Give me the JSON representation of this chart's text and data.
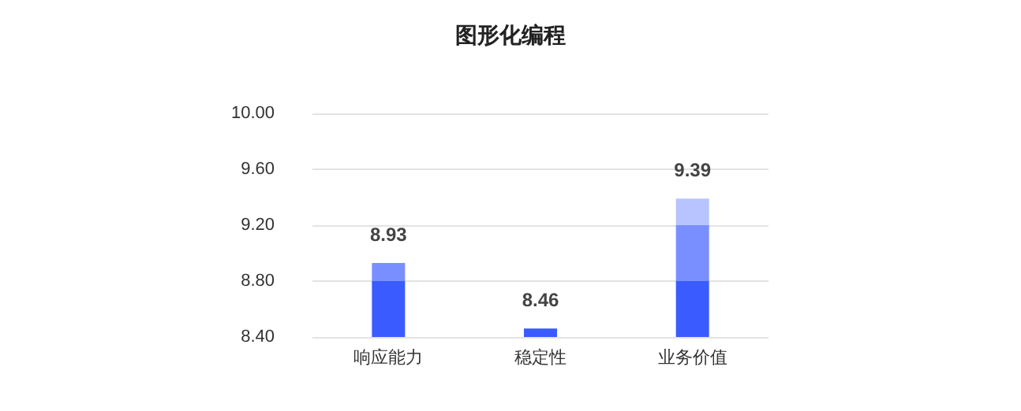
{
  "chart_data": {
    "type": "bar",
    "title": "图形化编程",
    "categories": [
      "响应能力",
      "稳定性",
      "业务价值"
    ],
    "series": [
      {
        "color": "#3a5bff",
        "values": [
          8.93,
          8.46,
          9.39
        ]
      }
    ],
    "data_labels": true,
    "ylim": [
      8.4,
      10.0
    ],
    "yticks": [
      {
        "value": 8.4,
        "label": "8.40"
      },
      {
        "value": 8.8,
        "label": "8.80"
      },
      {
        "value": 9.2,
        "label": "9.20"
      },
      {
        "value": 9.6,
        "label": "9.60"
      },
      {
        "value": 10,
        "label": "10.00"
      }
    ],
    "grid": "y"
  }
}
